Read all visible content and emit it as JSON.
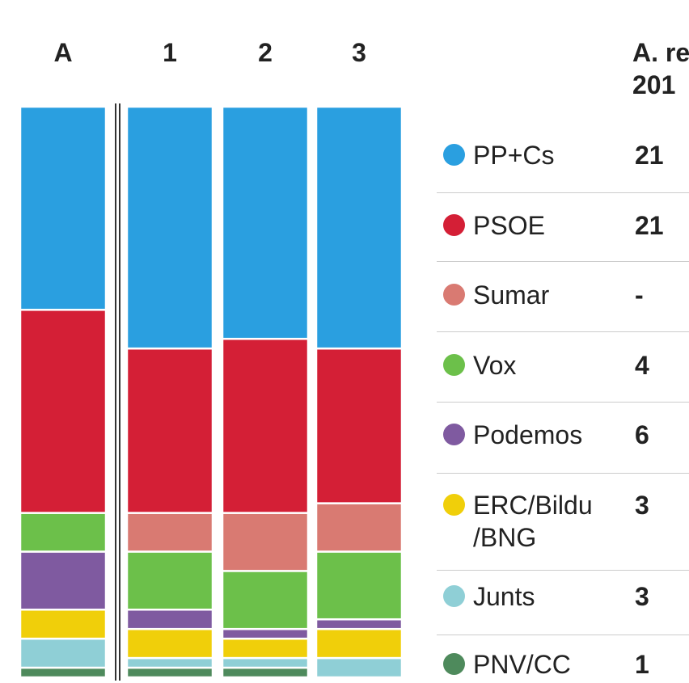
{
  "chart_data": {
    "type": "stacked-bar",
    "categories": [
      "A",
      "1",
      "2",
      "3"
    ],
    "table_header": [
      "A. re",
      "201"
    ],
    "ylim": [
      0,
      59
    ],
    "series": [
      {
        "name": "PP+Cs",
        "color": "#2a9fe0",
        "values": [
          21,
          25,
          24,
          25
        ],
        "value_labels": [
          "21",
          null,
          null,
          null
        ]
      },
      {
        "name": "PSOE",
        "color": "#d41f36",
        "values": [
          21,
          17,
          18,
          16
        ],
        "value_labels": [
          "21",
          null,
          null,
          null
        ]
      },
      {
        "name": "Sumar",
        "color": "#d97a72",
        "values": [
          0,
          4,
          6,
          5
        ],
        "value_labels": [
          "-",
          null,
          null,
          null
        ]
      },
      {
        "name": "Vox",
        "color": "#6cc04a",
        "values": [
          4,
          6,
          6,
          7
        ],
        "value_labels": [
          "4",
          null,
          null,
          null
        ]
      },
      {
        "name": "Podemos",
        "color": "#7f5aa0",
        "values": [
          6,
          2,
          1,
          1
        ],
        "value_labels": [
          "6",
          null,
          null,
          null
        ]
      },
      {
        "name": "ERC/Bildu\n/BNG",
        "color": "#f0cf0a",
        "values": [
          3,
          3,
          2,
          3
        ],
        "value_labels": [
          "3",
          null,
          null,
          null
        ]
      },
      {
        "name": "Junts",
        "color": "#8fcfd6",
        "values": [
          3,
          1,
          1,
          2
        ],
        "value_labels": [
          "3",
          null,
          null,
          null
        ]
      },
      {
        "name": "PNV/CC",
        "color": "#4e8a5c",
        "values": [
          1,
          1,
          1,
          0
        ],
        "value_labels": [
          "1",
          null,
          null,
          null
        ]
      }
    ]
  }
}
